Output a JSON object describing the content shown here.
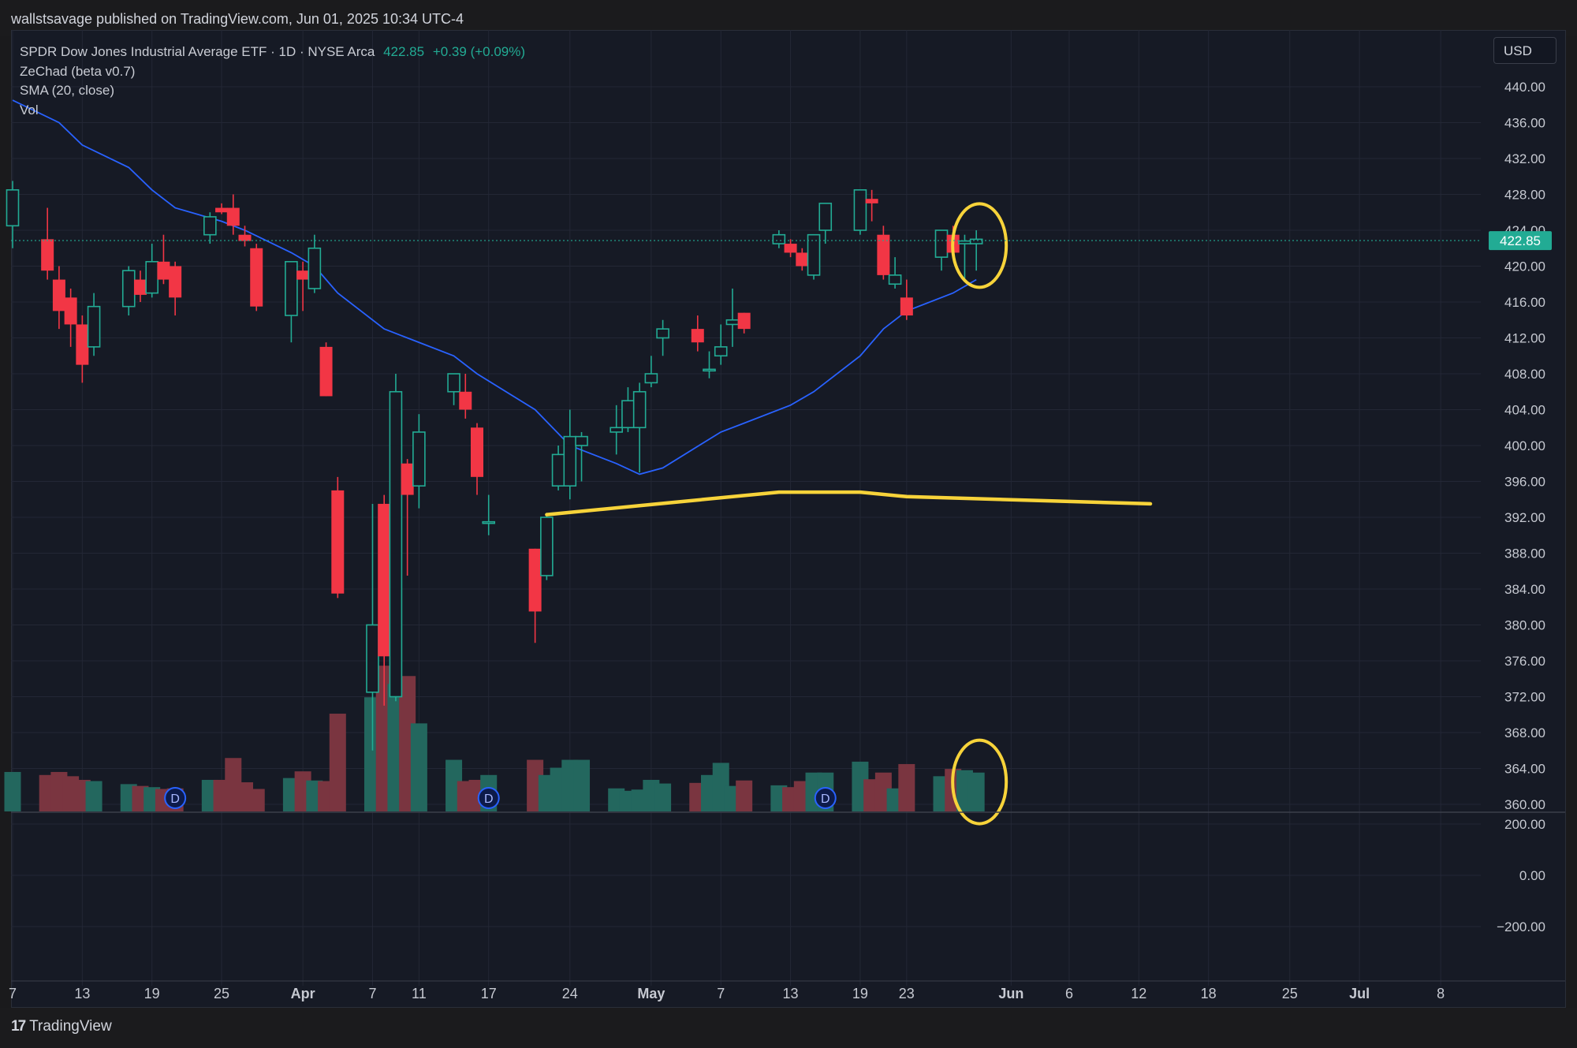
{
  "header": {
    "published": "wallstsavage published on TradingView.com, Jun 01, 2025 10:34 UTC-4"
  },
  "legend": {
    "symbol": "SPDR Dow Jones Industrial Average ETF · 1D · NYSE Arca",
    "price": "422.85",
    "change": "+0.39 (+0.09%)",
    "indicators": [
      "ZeChad (beta v0.7)",
      "SMA (20, close)",
      "Vol"
    ]
  },
  "currency": "USD",
  "footer": {
    "brand": "TradingView"
  },
  "colors": {
    "up": "#22ab94",
    "down": "#f23645",
    "sma": "#2962ff",
    "annotation": "#f7d33a",
    "background": "#161a25"
  },
  "chart_data": {
    "type": "candlestick",
    "price_axis": {
      "ylim": [
        359,
        443
      ],
      "ticks": [
        "440.00",
        "436.00",
        "432.00",
        "428.00",
        "424.00",
        "420.00",
        "416.00",
        "412.00",
        "408.00",
        "404.00",
        "400.00",
        "396.00",
        "392.00",
        "388.00",
        "384.00",
        "380.00",
        "376.00",
        "372.00",
        "368.00",
        "364.00",
        "360.00"
      ],
      "last_price_label": "422.85",
      "last_price": 422.85
    },
    "indicator_axis": {
      "ticks": [
        "200.00",
        "0.00",
        "−200.00"
      ],
      "values": [
        200,
        0,
        -200
      ]
    },
    "x_axis": {
      "ticks": [
        {
          "label": "7",
          "date": "2025-03-07"
        },
        {
          "label": "13",
          "date": "2025-03-13"
        },
        {
          "label": "19",
          "date": "2025-03-19"
        },
        {
          "label": "25",
          "date": "2025-03-25"
        },
        {
          "label": "Apr",
          "date": "2025-04-01",
          "bold": true
        },
        {
          "label": "7",
          "date": "2025-04-07"
        },
        {
          "label": "11",
          "date": "2025-04-11"
        },
        {
          "label": "17",
          "date": "2025-04-17"
        },
        {
          "label": "24",
          "date": "2025-04-24"
        },
        {
          "label": "May",
          "date": "2025-05-01",
          "bold": true
        },
        {
          "label": "7",
          "date": "2025-05-07"
        },
        {
          "label": "13",
          "date": "2025-05-13"
        },
        {
          "label": "19",
          "date": "2025-05-19"
        },
        {
          "label": "23",
          "date": "2025-05-23"
        },
        {
          "label": "Jun",
          "date": "2025-06-01",
          "bold": true
        },
        {
          "label": "6",
          "date": "2025-06-06"
        },
        {
          "label": "12",
          "date": "2025-06-12"
        },
        {
          "label": "18",
          "date": "2025-06-18"
        },
        {
          "label": "25",
          "date": "2025-06-25"
        },
        {
          "label": "Jul",
          "date": "2025-07-01",
          "bold": true
        },
        {
          "label": "8",
          "date": "2025-07-08"
        }
      ]
    },
    "candles": [
      {
        "date": "2025-03-07",
        "o": 424.5,
        "h": 429.5,
        "l": 422,
        "c": 428.5
      },
      {
        "date": "2025-03-10",
        "o": 423,
        "h": 426.5,
        "l": 418.5,
        "c": 419.5
      },
      {
        "date": "2025-03-11",
        "o": 418.5,
        "h": 420,
        "l": 413,
        "c": 415
      },
      {
        "date": "2025-03-12",
        "o": 416.5,
        "h": 417.5,
        "l": 411,
        "c": 413.5
      },
      {
        "date": "2025-03-13",
        "o": 413.5,
        "h": 414.5,
        "l": 407,
        "c": 409
      },
      {
        "date": "2025-03-14",
        "o": 411,
        "h": 417,
        "l": 410,
        "c": 415.5
      },
      {
        "date": "2025-03-17",
        "o": 415.5,
        "h": 420,
        "l": 414.5,
        "c": 419.5
      },
      {
        "date": "2025-03-18",
        "o": 418.5,
        "h": 419.5,
        "l": 416,
        "c": 416.8
      },
      {
        "date": "2025-03-19",
        "o": 417,
        "h": 422.5,
        "l": 416.5,
        "c": 420.5
      },
      {
        "date": "2025-03-20",
        "o": 420.5,
        "h": 423.5,
        "l": 418,
        "c": 418.5
      },
      {
        "date": "2025-03-21",
        "o": 420,
        "h": 420.5,
        "l": 414.5,
        "c": 416.5
      },
      {
        "date": "2025-03-24",
        "o": 423.5,
        "h": 426,
        "l": 422.5,
        "c": 425.5
      },
      {
        "date": "2025-03-25",
        "o": 426.5,
        "h": 427,
        "l": 425.8,
        "c": 426
      },
      {
        "date": "2025-03-26",
        "o": 426.5,
        "h": 428,
        "l": 423.5,
        "c": 424.5
      },
      {
        "date": "2025-03-27",
        "o": 423.5,
        "h": 424.5,
        "l": 422.2,
        "c": 422.8
      },
      {
        "date": "2025-03-28",
        "o": 422,
        "h": 422.5,
        "l": 415,
        "c": 415.5
      },
      {
        "date": "2025-03-31",
        "o": 414.5,
        "h": 420.5,
        "l": 411.5,
        "c": 420.5
      },
      {
        "date": "2025-04-01",
        "o": 419.5,
        "h": 420.5,
        "l": 415,
        "c": 418.5
      },
      {
        "date": "2025-04-02",
        "o": 417.5,
        "h": 423.5,
        "l": 417,
        "c": 422
      },
      {
        "date": "2025-04-03",
        "o": 411,
        "h": 411.5,
        "l": 405.5,
        "c": 405.5
      },
      {
        "date": "2025-04-04",
        "o": 395,
        "h": 396.5,
        "l": 383,
        "c": 383.5
      },
      {
        "date": "2025-04-07",
        "o": 372.5,
        "h": 393.5,
        "l": 366,
        "c": 380
      },
      {
        "date": "2025-04-08",
        "o": 393.5,
        "h": 394.5,
        "l": 371,
        "c": 376.5
      },
      {
        "date": "2025-04-09",
        "o": 372,
        "h": 408,
        "l": 371.5,
        "c": 406
      },
      {
        "date": "2025-04-10",
        "o": 398,
        "h": 398.5,
        "l": 385.5,
        "c": 394.5
      },
      {
        "date": "2025-04-11",
        "o": 395.5,
        "h": 403.5,
        "l": 393,
        "c": 401.5
      },
      {
        "date": "2025-04-14",
        "o": 406,
        "h": 408,
        "l": 404.5,
        "c": 408
      },
      {
        "date": "2025-04-15",
        "o": 406,
        "h": 408,
        "l": 403,
        "c": 404
      },
      {
        "date": "2025-04-16",
        "o": 402,
        "h": 402.5,
        "l": 394.5,
        "c": 396.5
      },
      {
        "date": "2025-04-17",
        "o": 391.5,
        "h": 394.5,
        "l": 390,
        "c": 391.5
      },
      {
        "date": "2025-04-21",
        "o": 388.5,
        "h": 388.5,
        "l": 378,
        "c": 381.5
      },
      {
        "date": "2025-04-22",
        "o": 385.5,
        "h": 392.5,
        "l": 385,
        "c": 392
      },
      {
        "date": "2025-04-23",
        "o": 395.5,
        "h": 400,
        "l": 395,
        "c": 399
      },
      {
        "date": "2025-04-24",
        "o": 395.5,
        "h": 404,
        "l": 394,
        "c": 401
      },
      {
        "date": "2025-04-25",
        "o": 400,
        "h": 401.5,
        "l": 396,
        "c": 401
      },
      {
        "date": "2025-04-28",
        "o": 401.5,
        "h": 404.5,
        "l": 399,
        "c": 402
      },
      {
        "date": "2025-04-29",
        "o": 402,
        "h": 406.5,
        "l": 401.5,
        "c": 405
      },
      {
        "date": "2025-04-30",
        "o": 402,
        "h": 407,
        "l": 397,
        "c": 406
      },
      {
        "date": "2025-05-01",
        "o": 407,
        "h": 410,
        "l": 406.5,
        "c": 408
      },
      {
        "date": "2025-05-02",
        "o": 412,
        "h": 414,
        "l": 410,
        "c": 413
      },
      {
        "date": "2025-05-05",
        "o": 413,
        "h": 414.5,
        "l": 410.5,
        "c": 411.5
      },
      {
        "date": "2025-05-06",
        "o": 408.5,
        "h": 410.5,
        "l": 407.5,
        "c": 408.5
      },
      {
        "date": "2025-05-07",
        "o": 410,
        "h": 413.5,
        "l": 409,
        "c": 411
      },
      {
        "date": "2025-05-08",
        "o": 413.5,
        "h": 417.5,
        "l": 411,
        "c": 414
      },
      {
        "date": "2025-05-09",
        "o": 414.8,
        "h": 414.8,
        "l": 412.5,
        "c": 413
      },
      {
        "date": "2025-05-12",
        "o": 422.5,
        "h": 424,
        "l": 422,
        "c": 423.5
      },
      {
        "date": "2025-05-13",
        "o": 422.5,
        "h": 423,
        "l": 421,
        "c": 421.5
      },
      {
        "date": "2025-05-14",
        "o": 421.5,
        "h": 422,
        "l": 419.5,
        "c": 420
      },
      {
        "date": "2025-05-15",
        "o": 419,
        "h": 423.5,
        "l": 418.5,
        "c": 423.5
      },
      {
        "date": "2025-05-16",
        "o": 424,
        "h": 427,
        "l": 422.5,
        "c": 427
      },
      {
        "date": "2025-05-19",
        "o": 424,
        "h": 428.5,
        "l": 423.5,
        "c": 428.5
      },
      {
        "date": "2025-05-20",
        "o": 427.5,
        "h": 428.5,
        "l": 425,
        "c": 427
      },
      {
        "date": "2025-05-21",
        "o": 423.5,
        "h": 424.5,
        "l": 418.5,
        "c": 419
      },
      {
        "date": "2025-05-22",
        "o": 418,
        "h": 421,
        "l": 417.5,
        "c": 419
      },
      {
        "date": "2025-05-23",
        "o": 416.5,
        "h": 418.5,
        "l": 414,
        "c": 414.5
      },
      {
        "date": "2025-05-26",
        "o": 421,
        "h": 424,
        "l": 419.5,
        "c": 424
      },
      {
        "date": "2025-05-27",
        "o": 423.5,
        "h": 424.5,
        "l": 421,
        "c": 421.5
      },
      {
        "date": "2025-05-28",
        "o": 422.5,
        "h": 423.5,
        "l": 418.5,
        "c": 422.8
      },
      {
        "date": "2025-05-29",
        "o": 422.5,
        "h": 424,
        "l": 419.5,
        "c": 423
      }
    ],
    "sma": [
      {
        "date": "2025-03-07",
        "v": 438.5
      },
      {
        "date": "2025-03-11",
        "v": 436
      },
      {
        "date": "2025-03-13",
        "v": 433.5
      },
      {
        "date": "2025-03-17",
        "v": 431
      },
      {
        "date": "2025-03-19",
        "v": 428.5
      },
      {
        "date": "2025-03-21",
        "v": 426.5
      },
      {
        "date": "2025-03-25",
        "v": 425
      },
      {
        "date": "2025-03-27",
        "v": 424
      },
      {
        "date": "2025-03-31",
        "v": 421.5
      },
      {
        "date": "2025-04-02",
        "v": 420
      },
      {
        "date": "2025-04-04",
        "v": 417
      },
      {
        "date": "2025-04-08",
        "v": 413
      },
      {
        "date": "2025-04-10",
        "v": 412
      },
      {
        "date": "2025-04-14",
        "v": 410
      },
      {
        "date": "2025-04-16",
        "v": 408
      },
      {
        "date": "2025-04-21",
        "v": 404
      },
      {
        "date": "2025-04-24",
        "v": 400
      },
      {
        "date": "2025-04-28",
        "v": 398
      },
      {
        "date": "2025-04-30",
        "v": 396.8
      },
      {
        "date": "2025-05-02",
        "v": 397.5
      },
      {
        "date": "2025-05-07",
        "v": 401.5
      },
      {
        "date": "2025-05-09",
        "v": 402.5
      },
      {
        "date": "2025-05-13",
        "v": 404.5
      },
      {
        "date": "2025-05-15",
        "v": 406
      },
      {
        "date": "2025-05-19",
        "v": 410
      },
      {
        "date": "2025-05-21",
        "v": 413
      },
      {
        "date": "2025-05-23",
        "v": 415
      },
      {
        "date": "2025-05-27",
        "v": 417
      },
      {
        "date": "2025-05-29",
        "v": 418.5
      }
    ],
    "volume_relative": [
      0.65,
      0.6,
      0.65,
      0.58,
      0.52,
      0.5,
      0.45,
      0.42,
      0.4,
      0.37,
      0.38,
      0.52,
      0.52,
      0.88,
      0.48,
      0.37,
      0.55,
      0.66,
      0.51,
      0.5,
      1.61,
      1.88,
      2.4,
      2.1,
      2.23,
      1.45,
      0.85,
      0.5,
      0.52,
      0.6,
      0.85,
      0.6,
      0.72,
      0.85,
      0.85,
      0.38,
      0.34,
      0.36,
      0.52,
      0.46,
      0.47,
      0.6,
      0.8,
      0.42,
      0.51,
      0.43,
      0.4,
      0.5,
      0.64,
      0.64,
      0.82,
      0.53,
      0.64,
      0.38,
      0.78,
      0.58,
      0.7,
      0.68,
      0.64
    ],
    "dividend_markers": [
      "2025-03-21",
      "2025-04-17",
      "2025-05-16"
    ],
    "dividend_label": "D",
    "annotations": [
      {
        "kind": "freehand-line",
        "points": [
          [
            "2025-04-22",
            392.3
          ],
          [
            "2025-05-12",
            394.8
          ],
          [
            "2025-05-19",
            394.8
          ],
          [
            "2025-05-23",
            394.3
          ],
          [
            "2025-06-13",
            393.5
          ]
        ]
      },
      {
        "kind": "circle",
        "center": [
          "2025-05-29",
          422.3
        ]
      },
      {
        "kind": "circle",
        "center": [
          "2025-05-29",
          362.5
        ]
      }
    ]
  }
}
